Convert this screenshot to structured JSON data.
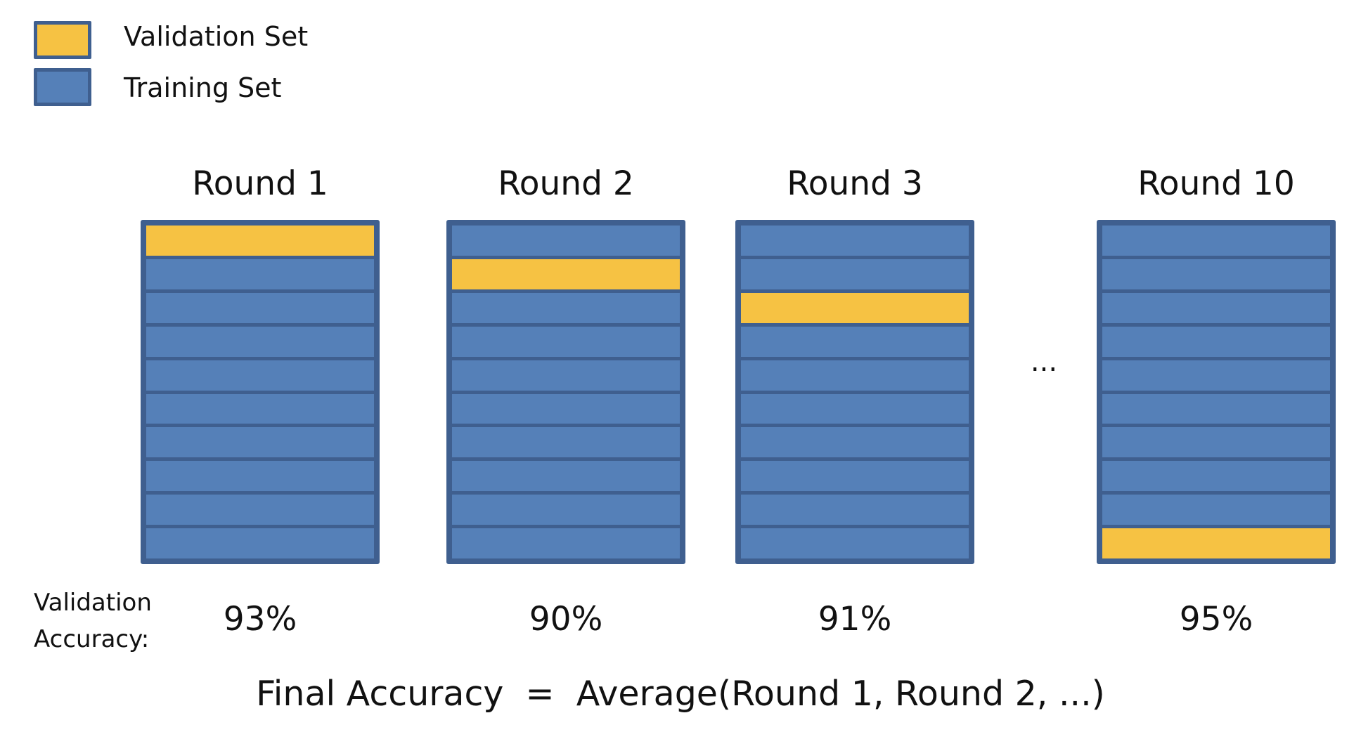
{
  "legend": {
    "validation_label": "Validation Set",
    "training_label": "Training Set"
  },
  "colors": {
    "validation": "#f6c243",
    "training": "#5580b8",
    "border": "#3f5f8f"
  },
  "folds_per_round": 10,
  "rounds": [
    {
      "title": "Round 1",
      "validation_fold": 1,
      "accuracy": "93%"
    },
    {
      "title": "Round 2",
      "validation_fold": 2,
      "accuracy": "90%"
    },
    {
      "title": "Round 3",
      "validation_fold": 3,
      "accuracy": "91%"
    },
    {
      "title": "Round 10",
      "validation_fold": 10,
      "accuracy": "95%"
    }
  ],
  "ellipsis": "...",
  "accuracy_label": "Validation Accuracy:",
  "formula": "Final Accuracy  =  Average(Round 1, Round 2, ...)"
}
